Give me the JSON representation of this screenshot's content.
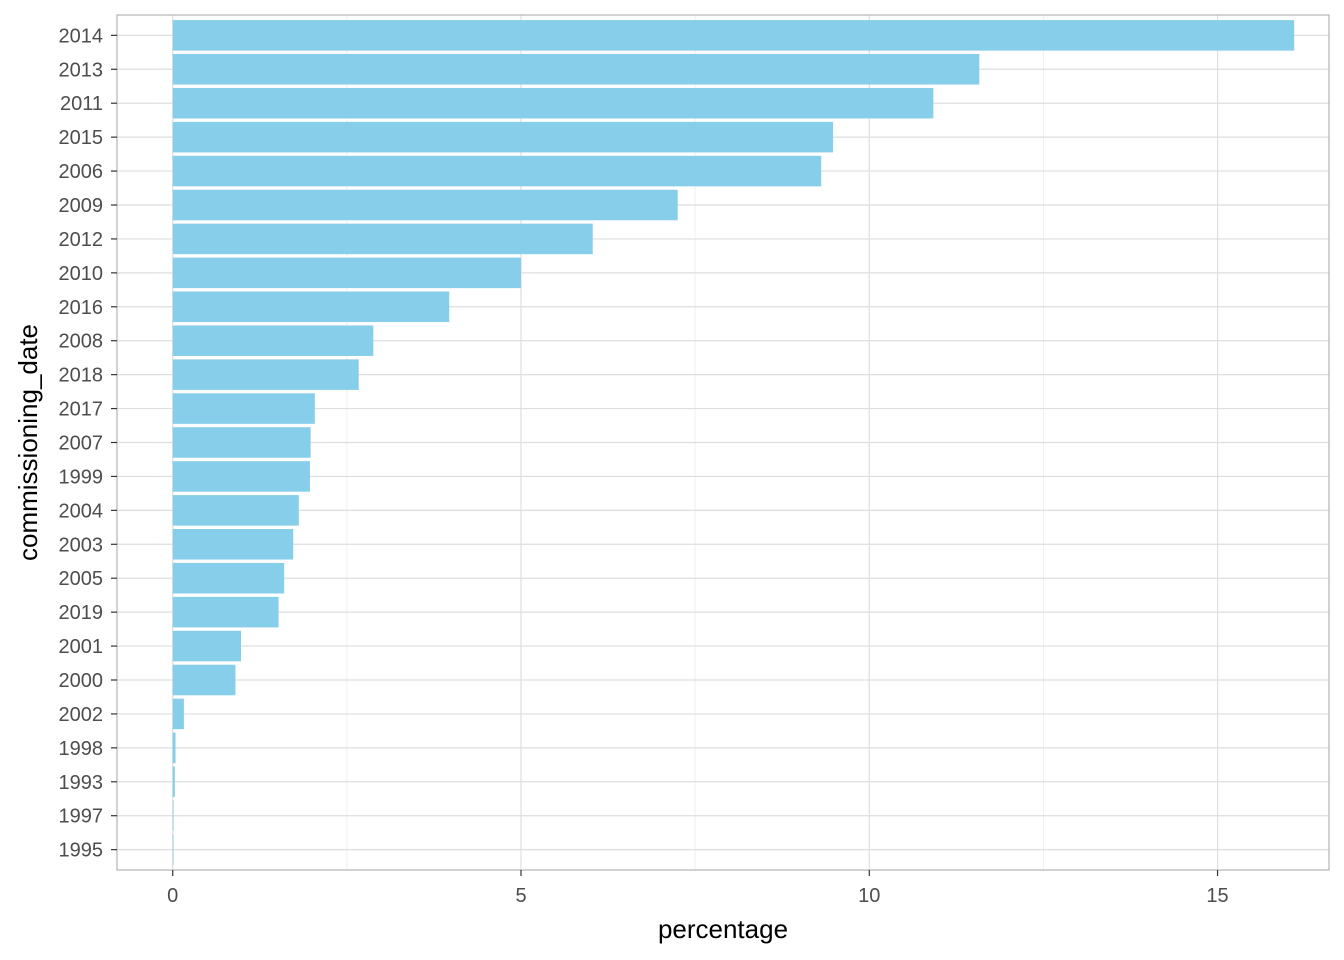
{
  "chart_data": {
    "type": "bar",
    "orientation": "horizontal",
    "xlabel": "percentage",
    "ylabel": "commissioning_date",
    "xlim": [
      -0.8,
      16.6
    ],
    "xticks": [
      0,
      5,
      10,
      15
    ],
    "grid": true,
    "bar_color": "#87CEEB",
    "categories": [
      "2014",
      "2013",
      "2011",
      "2015",
      "2006",
      "2009",
      "2012",
      "2010",
      "2016",
      "2008",
      "2018",
      "2017",
      "2007",
      "1999",
      "2004",
      "2003",
      "2005",
      "2019",
      "2001",
      "2000",
      "2002",
      "1998",
      "1993",
      "1997",
      "1995"
    ],
    "values": [
      16.1,
      11.58,
      10.92,
      9.48,
      9.31,
      7.25,
      6.03,
      5.0,
      3.97,
      2.88,
      2.67,
      2.04,
      1.98,
      1.97,
      1.81,
      1.73,
      1.6,
      1.52,
      0.98,
      0.9,
      0.16,
      0.04,
      0.03,
      0.01,
      0.01
    ]
  }
}
